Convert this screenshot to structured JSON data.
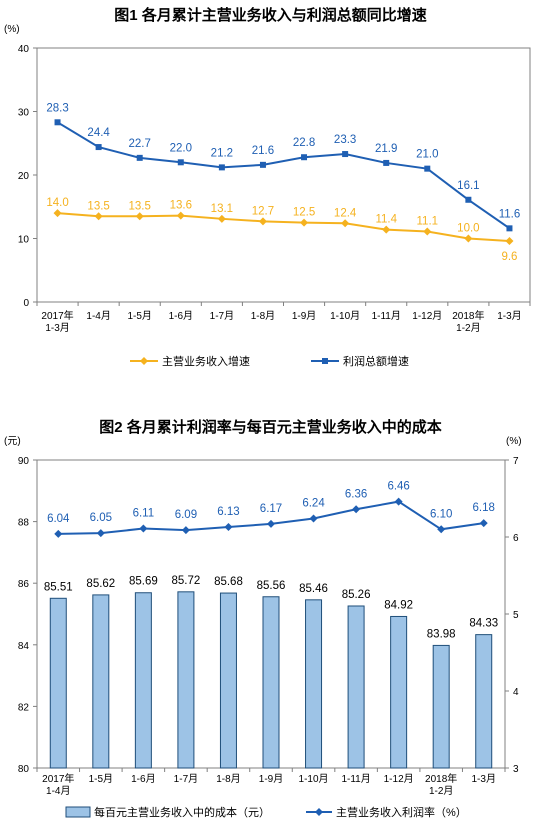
{
  "colors": {
    "orange": "#F5B21F",
    "blue": "#1F5FB3",
    "bar_fill": "#9DC3E6",
    "bar_stroke": "#1F4E79",
    "axis": "#808080"
  },
  "chart_data": [
    {
      "type": "line",
      "title": "图1  各月累计主营业务收入与利润总额同比增速",
      "unit_label": "(%)",
      "ylim": [
        0,
        40
      ],
      "yticks": [
        "0",
        "10",
        "20",
        "30",
        "40"
      ],
      "categories": [
        "2017年\n1-3月",
        "1-4月",
        "1-5月",
        "1-6月",
        "1-7月",
        "1-8月",
        "1-9月",
        "1-10月",
        "1-11月",
        "1-12月",
        "2018年\n1-2月",
        "1-3月"
      ],
      "series": [
        {
          "name": "主营业务收入增速",
          "values": [
            14.0,
            13.5,
            13.5,
            13.6,
            13.1,
            12.7,
            12.5,
            12.4,
            11.4,
            11.1,
            10.0,
            9.6
          ],
          "labels": [
            "14.0",
            "13.5",
            "13.5",
            "13.6",
            "13.1",
            "12.7",
            "12.5",
            "12.4",
            "11.4",
            "11.1",
            "10.0",
            "9.6"
          ]
        },
        {
          "name": "利润总额增速",
          "values": [
            28.3,
            24.4,
            22.7,
            22.0,
            21.2,
            21.6,
            22.8,
            23.3,
            21.9,
            21.0,
            16.1,
            11.6
          ],
          "labels": [
            "28.3",
            "24.4",
            "22.7",
            "22.0",
            "21.2",
            "21.6",
            "22.8",
            "23.3",
            "21.9",
            "21.0",
            "16.1",
            "11.6"
          ]
        }
      ],
      "legend_position": "bottom",
      "grid": false
    },
    {
      "type": "bar",
      "title": "图2  各月累计利润率与每百元主营业务收入中的成本",
      "left_unit": "(元)",
      "right_unit": "(%)",
      "ylim_left": [
        80,
        90
      ],
      "yticks_left": [
        "80",
        "82",
        "84",
        "86",
        "88",
        "90"
      ],
      "ylim_right": [
        3,
        7
      ],
      "yticks_right": [
        "3",
        "4",
        "5",
        "6",
        "7"
      ],
      "categories": [
        "2017年\n1-4月",
        "1-5月",
        "1-6月",
        "1-7月",
        "1-8月",
        "1-9月",
        "1-10月",
        "1-11月",
        "1-12月",
        "2018年\n1-2月",
        "1-3月"
      ],
      "series": [
        {
          "name": "每百元主营业务收入中的成本（元）",
          "type": "bar",
          "axis": "left",
          "values": [
            85.51,
            85.62,
            85.69,
            85.72,
            85.68,
            85.56,
            85.46,
            85.26,
            84.92,
            83.98,
            84.33
          ],
          "labels": [
            "85.51",
            "85.62",
            "85.69",
            "85.72",
            "85.68",
            "85.56",
            "85.46",
            "85.26",
            "84.92",
            "83.98",
            "84.33"
          ]
        },
        {
          "name": "主营业务收入利润率（%）",
          "type": "line",
          "axis": "right",
          "values": [
            6.04,
            6.05,
            6.11,
            6.09,
            6.13,
            6.17,
            6.24,
            6.36,
            6.46,
            6.1,
            6.18
          ],
          "labels": [
            "6.04",
            "6.05",
            "6.11",
            "6.09",
            "6.13",
            "6.17",
            "6.24",
            "6.36",
            "6.46",
            "6.10",
            "6.18"
          ]
        }
      ],
      "legend_position": "bottom",
      "grid": false
    }
  ]
}
